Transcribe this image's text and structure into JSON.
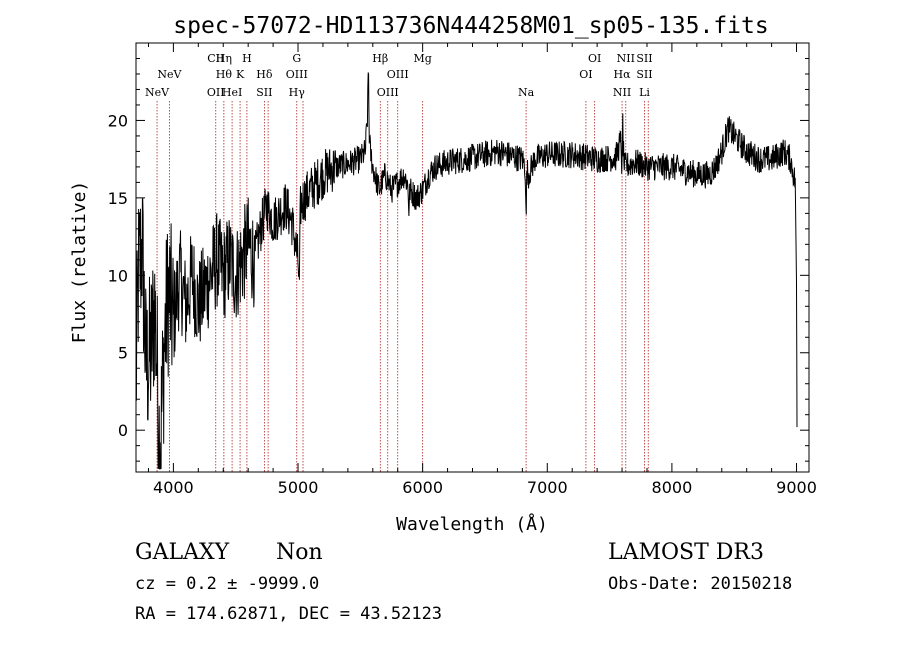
{
  "chart_data": {
    "type": "line",
    "title": "spec-57072-HD113736N444258M01_sp05-135.fits",
    "xlabel": "Wavelength (Å)",
    "ylabel": "Flux (relative)",
    "xlim": [
      3700,
      9100
    ],
    "ylim": [
      -2.7,
      25
    ],
    "x_ticks": [
      4000,
      5000,
      6000,
      7000,
      8000,
      9000
    ],
    "x_tick_labels": [
      "4000",
      "5000",
      "6000",
      "7000",
      "8000",
      "9000"
    ],
    "y_ticks": [
      0,
      5,
      10,
      15,
      20
    ],
    "y_tick_labels": [
      "0",
      "5",
      "10",
      "15",
      "20"
    ],
    "grid": false,
    "series": [
      {
        "name": "flux",
        "anchors": [
          [
            3700,
            3
          ],
          [
            3720,
            10
          ],
          [
            3750,
            12
          ],
          [
            3780,
            4
          ],
          [
            3820,
            5
          ],
          [
            3850,
            8
          ],
          [
            3880,
            2
          ],
          [
            3900,
            0
          ],
          [
            3930,
            6
          ],
          [
            3960,
            9
          ],
          [
            4000,
            7
          ],
          [
            4050,
            10
          ],
          [
            4100,
            8
          ],
          [
            4150,
            10
          ],
          [
            4200,
            8
          ],
          [
            4250,
            9
          ],
          [
            4300,
            10
          ],
          [
            4350,
            11
          ],
          [
            4400,
            10
          ],
          [
            4450,
            11
          ],
          [
            4500,
            10
          ],
          [
            4550,
            11
          ],
          [
            4600,
            12
          ],
          [
            4650,
            11
          ],
          [
            4700,
            13
          ],
          [
            4750,
            14.5
          ],
          [
            4800,
            13.5
          ],
          [
            4850,
            14
          ],
          [
            4900,
            14.5
          ],
          [
            4950,
            13.5
          ],
          [
            4980,
            12
          ],
          [
            5000,
            11
          ],
          [
            5020,
            14.5
          ],
          [
            5050,
            15
          ],
          [
            5100,
            15.5
          ],
          [
            5150,
            16
          ],
          [
            5200,
            16.5
          ],
          [
            5250,
            16.8
          ],
          [
            5300,
            17
          ],
          [
            5400,
            17.2
          ],
          [
            5500,
            17.5
          ],
          [
            5540,
            18
          ],
          [
            5560,
            20.5
          ],
          [
            5580,
            18
          ],
          [
            5600,
            17
          ],
          [
            5650,
            15.5
          ],
          [
            5700,
            16.5
          ],
          [
            5750,
            15.5
          ],
          [
            5800,
            16
          ],
          [
            5850,
            16.5
          ],
          [
            5900,
            15.5
          ],
          [
            5950,
            15
          ],
          [
            6000,
            15.5
          ],
          [
            6050,
            16.5
          ],
          [
            6100,
            17
          ],
          [
            6200,
            17.3
          ],
          [
            6400,
            17.6
          ],
          [
            6600,
            18
          ],
          [
            6800,
            17.5
          ],
          [
            6850,
            16.5
          ],
          [
            6900,
            17.5
          ],
          [
            7000,
            17.8
          ],
          [
            7200,
            17.8
          ],
          [
            7400,
            17.5
          ],
          [
            7550,
            17.6
          ],
          [
            7600,
            19
          ],
          [
            7620,
            17
          ],
          [
            7700,
            17.3
          ],
          [
            7800,
            17
          ],
          [
            8000,
            17
          ],
          [
            8200,
            16.5
          ],
          [
            8300,
            16.5
          ],
          [
            8350,
            17
          ],
          [
            8400,
            18
          ],
          [
            8450,
            19.5
          ],
          [
            8500,
            19
          ],
          [
            8600,
            18
          ],
          [
            8700,
            17.5
          ],
          [
            8800,
            17.5
          ],
          [
            8900,
            18
          ],
          [
            8950,
            17.5
          ],
          [
            8990,
            16
          ]
        ],
        "features": [
          {
            "center": 3890,
            "depth": -4.5,
            "width": 4
          },
          {
            "center": 5010,
            "depth": -3.5,
            "width": 6
          },
          {
            "center": 5565,
            "depth": 3.5,
            "width": 4
          },
          {
            "center": 5890,
            "depth": -1.5,
            "width": 5
          },
          {
            "center": 6830,
            "depth": -3.5,
            "width": 4
          },
          {
            "center": 7600,
            "depth": -2.5,
            "width": 5
          },
          {
            "center": 7605,
            "depth": 2.5,
            "width": 3
          }
        ],
        "noise": [
          {
            "from": 3700,
            "to": 4000,
            "amp": 5.5
          },
          {
            "from": 4000,
            "to": 4650,
            "amp": 3.2
          },
          {
            "from": 4650,
            "to": 5300,
            "amp": 1.6
          },
          {
            "from": 5300,
            "to": 9000,
            "amp": 0.9
          }
        ],
        "end_points": [
          [
            9000,
            9.5
          ],
          [
            9002,
            4.5
          ],
          [
            9004,
            0.2
          ]
        ]
      }
    ],
    "lines": [
      {
        "wavelength": 3869,
        "rows": [
          {
            "row": 3,
            "text": "NeV"
          }
        ]
      },
      {
        "wavelength": 3968,
        "rows": [
          {
            "row": 2,
            "text": "NeV"
          }
        ]
      },
      {
        "wavelength": 4340,
        "rows": [
          {
            "row": 1,
            "text": "CII"
          },
          {
            "row": 3,
            "text": "OII"
          }
        ]
      },
      {
        "wavelength": 4405,
        "rows": [
          {
            "row": 1,
            "text": "Hη"
          },
          {
            "row": 2,
            "text": "Hθ"
          }
        ]
      },
      {
        "wavelength": 4471,
        "rows": [
          {
            "row": 3,
            "text": "HeI"
          }
        ]
      },
      {
        "wavelength": 4535,
        "rows": [
          {
            "row": 2,
            "text": "K"
          }
        ]
      },
      {
        "wavelength": 4590,
        "rows": [
          {
            "row": 1,
            "text": "H"
          }
        ]
      },
      {
        "wavelength": 4730,
        "rows": [
          {
            "row": 2,
            "text": "Hδ"
          },
          {
            "row": 3,
            "text": "SII"
          }
        ]
      },
      {
        "wavelength": 4760,
        "rows": []
      },
      {
        "wavelength": 4990,
        "rows": [
          {
            "row": 1,
            "text": "G"
          },
          {
            "row": 2,
            "text": "OIII"
          },
          {
            "row": 3,
            "text": "Hγ"
          }
        ]
      },
      {
        "wavelength": 5040,
        "rows": []
      },
      {
        "wavelength": 5660,
        "rows": [
          {
            "row": 1,
            "text": "Hβ"
          }
        ]
      },
      {
        "wavelength": 5720,
        "rows": [
          {
            "row": 3,
            "text": "OIII"
          }
        ]
      },
      {
        "wavelength": 5800,
        "rows": [
          {
            "row": 2,
            "text": "OIII"
          }
        ]
      },
      {
        "wavelength": 6000,
        "rows": [
          {
            "row": 1,
            "text": "Mg"
          }
        ]
      },
      {
        "wavelength": 6830,
        "rows": [
          {
            "row": 3,
            "text": "Na"
          }
        ]
      },
      {
        "wavelength": 7310,
        "rows": [
          {
            "row": 2,
            "text": "OI"
          }
        ]
      },
      {
        "wavelength": 7380,
        "rows": [
          {
            "row": 1,
            "text": "OI"
          }
        ]
      },
      {
        "wavelength": 7600,
        "rows": [
          {
            "row": 2,
            "text": "Hα"
          },
          {
            "row": 3,
            "text": "NII"
          }
        ]
      },
      {
        "wavelength": 7630,
        "rows": [
          {
            "row": 1,
            "text": "NII"
          }
        ]
      },
      {
        "wavelength": 7780,
        "rows": [
          {
            "row": 1,
            "text": "SII"
          },
          {
            "row": 2,
            "text": "SII"
          },
          {
            "row": 3,
            "text": "Li"
          }
        ]
      },
      {
        "wavelength": 7810,
        "rows": []
      }
    ],
    "colors": {
      "line": "#000000",
      "marker": "#b22222",
      "axes": "#000000",
      "background": "#ffffff"
    }
  },
  "info": {
    "object_class": "GALAXY",
    "subclass": "Non",
    "survey": "LAMOST DR3",
    "cz": "cz = 0.2 ± -9999.0",
    "obs_date": "Obs-Date: 20150218",
    "coords": "RA = 174.62871, DEC =  43.52123"
  }
}
